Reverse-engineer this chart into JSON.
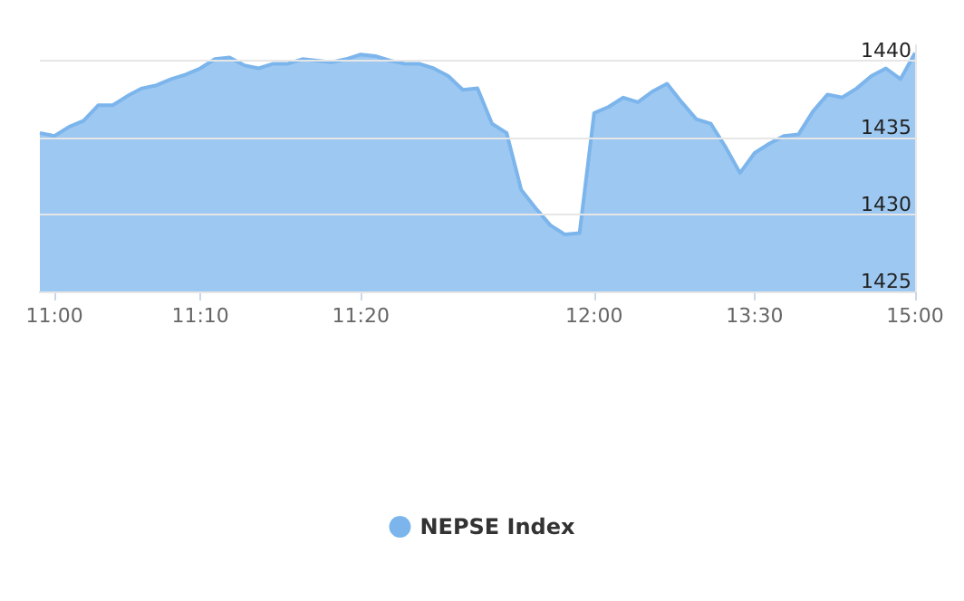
{
  "chart_data": {
    "type": "area",
    "categories": [
      null,
      "11:00",
      null,
      null,
      null,
      null,
      null,
      null,
      null,
      null,
      null,
      "11:10",
      null,
      null,
      null,
      null,
      null,
      null,
      null,
      null,
      null,
      null,
      "11:20",
      null,
      null,
      null,
      null,
      null,
      null,
      null,
      null,
      null,
      null,
      null,
      null,
      null,
      null,
      null,
      "12:00",
      null,
      null,
      null,
      null,
      null,
      null,
      null,
      null,
      null,
      null,
      "13:30",
      null,
      null,
      null,
      null,
      null,
      null,
      null,
      null,
      null,
      null,
      "15:00"
    ],
    "series": [
      {
        "name": "NEPSE Index",
        "color": "#7cb5ec",
        "values": [
          1435.3,
          1435.1,
          1435.7,
          1436.1,
          1437.1,
          1437.1,
          1437.7,
          1438.2,
          1438.4,
          1438.8,
          1439.1,
          1439.5,
          1440.1,
          1440.2,
          1439.7,
          1439.5,
          1439.8,
          1439.8,
          1440.1,
          1440.0,
          1439.9,
          1440.1,
          1440.4,
          1440.3,
          1440.0,
          1439.8,
          1439.8,
          1439.5,
          1439.0,
          1438.1,
          1438.2,
          1435.9,
          1435.3,
          1431.6,
          1430.4,
          1429.3,
          1428.7,
          1428.8,
          1436.6,
          1437.0,
          1437.6,
          1437.3,
          1438.0,
          1438.5,
          1437.3,
          1436.2,
          1435.9,
          1434.4,
          1432.7,
          1434.0,
          1434.6,
          1435.1,
          1435.2,
          1436.7,
          1437.8,
          1437.6,
          1438.2,
          1439.0,
          1439.5,
          1438.8,
          1440.5
        ]
      }
    ],
    "ylim": [
      1425,
      1441
    ],
    "yticks": [
      1425,
      1430,
      1435,
      1440
    ],
    "grid": "y",
    "legend": "bottom",
    "marker": "none"
  }
}
